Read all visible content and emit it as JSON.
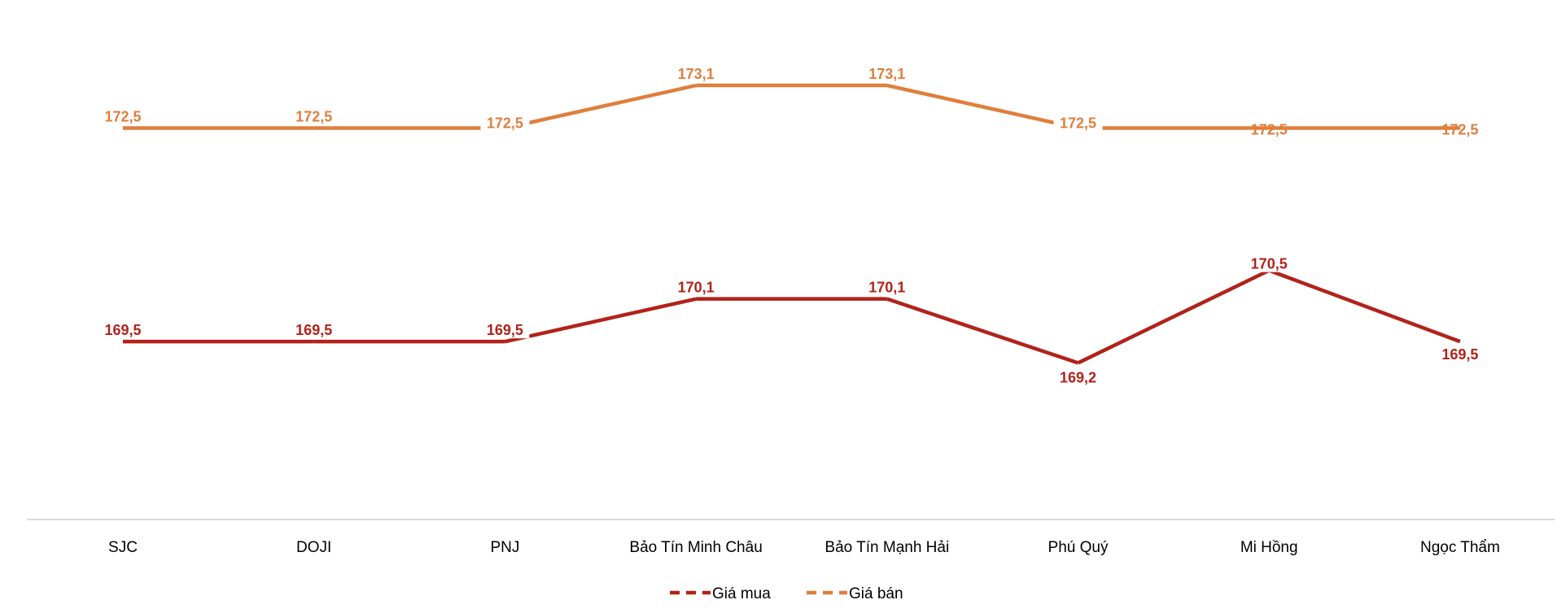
{
  "chart_data": {
    "type": "line",
    "categories": [
      "SJC",
      "DOJI",
      "PNJ",
      "Bảo Tín Minh Châu",
      "Bảo Tín Mạnh Hải",
      "Phú Quý",
      "Mi Hồng",
      "Ngọc Thẩm"
    ],
    "series": [
      {
        "name": "Giá mua",
        "color": "#B2221A",
        "values": [
          169.5,
          169.5,
          169.5,
          170.1,
          170.1,
          169.2,
          170.5,
          169.5
        ],
        "labels": [
          "169,5",
          "169,5",
          "169,5",
          "170,1",
          "170,1",
          "169,2",
          "170,5",
          "169,5"
        ]
      },
      {
        "name": "Giá bán",
        "color": "#E07E3C",
        "values": [
          172.5,
          172.5,
          172.5,
          173.1,
          173.1,
          172.5,
          172.5,
          172.5
        ],
        "labels": [
          "172,5",
          "172,5",
          "172,5",
          "173,1",
          "173,1",
          "172,5",
          "172,5",
          "172,5"
        ]
      }
    ],
    "title": "",
    "xlabel": "",
    "ylabel": "",
    "ylim": [
      167.0,
      174.3
    ],
    "grid": false,
    "y_axis_visible": false,
    "legend_position": "bottom"
  }
}
